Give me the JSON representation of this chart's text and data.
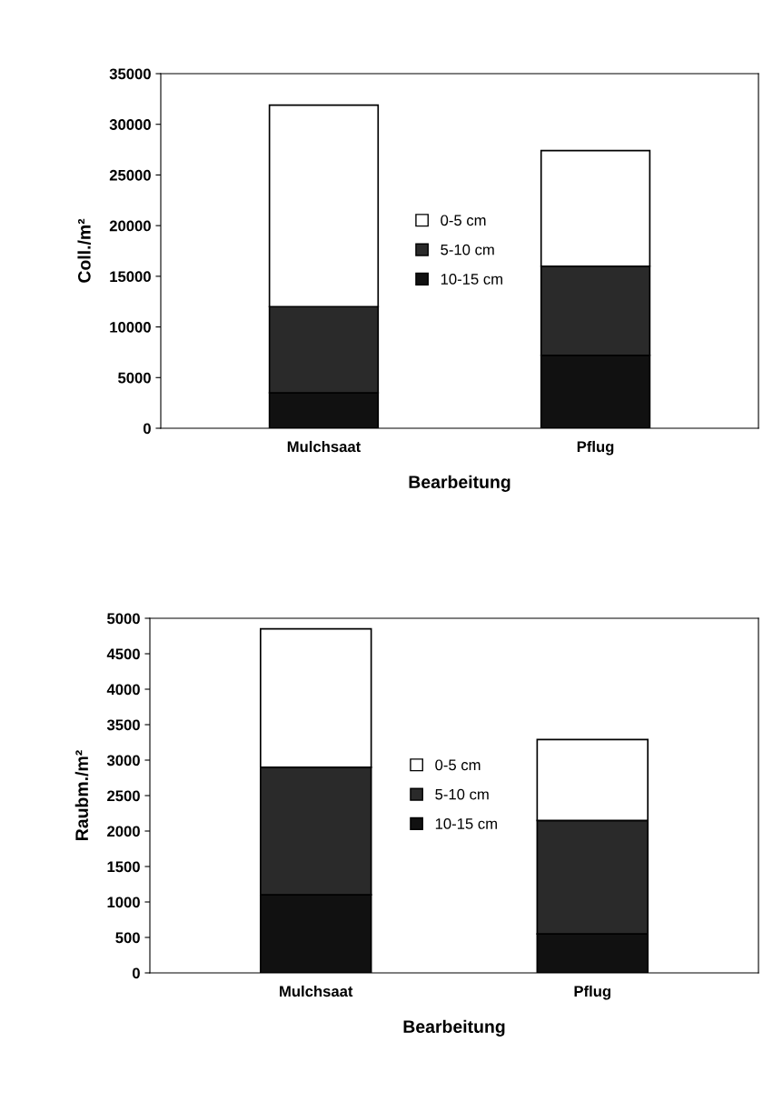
{
  "chart_data": [
    {
      "type": "bar",
      "stacked": true,
      "categories": [
        "Mulchsaat",
        "Pflug"
      ],
      "xlabel": "Bearbeitung",
      "ylabel": "Coll./m²",
      "ylim": [
        0,
        35000
      ],
      "yticks": [
        0,
        5000,
        10000,
        15000,
        20000,
        25000,
        30000,
        35000
      ],
      "legend": "center",
      "grid": false,
      "series": [
        {
          "name": "10-15 cm",
          "color": "#111111",
          "values": [
            3500,
            7200
          ]
        },
        {
          "name": "5-10 cm",
          "color": "#2a2a2a",
          "values": [
            8500,
            8800
          ]
        },
        {
          "name": "0-5 cm",
          "color": "#ffffff",
          "values": [
            19900,
            11400
          ]
        }
      ]
    },
    {
      "type": "bar",
      "stacked": true,
      "categories": [
        "Mulchsaat",
        "Pflug"
      ],
      "xlabel": "Bearbeitung",
      "ylabel": "Raubm./m²",
      "ylim": [
        0,
        5000
      ],
      "yticks": [
        0,
        500,
        1000,
        1500,
        2000,
        2500,
        3000,
        3500,
        4000,
        4500,
        5000
      ],
      "legend": "center",
      "grid": false,
      "series": [
        {
          "name": "10-15 cm",
          "color": "#111111",
          "values": [
            1100,
            550
          ]
        },
        {
          "name": "5-10 cm",
          "color": "#2a2a2a",
          "values": [
            1800,
            1600
          ]
        },
        {
          "name": "0-5 cm",
          "color": "#ffffff",
          "values": [
            1950,
            1140
          ]
        }
      ]
    }
  ]
}
